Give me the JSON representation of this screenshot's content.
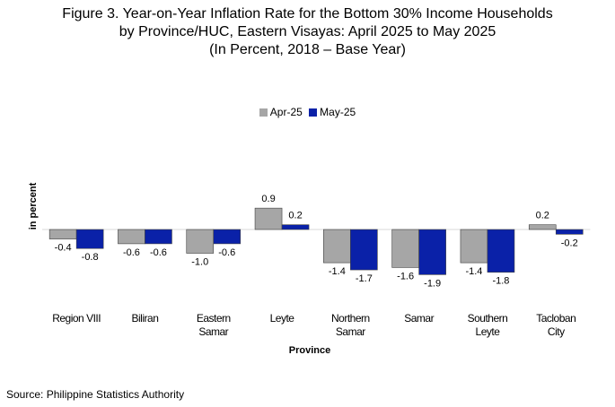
{
  "title": {
    "line1": "Figure 3. Year-on-Year Inflation Rate for the Bottom 30% Income Households",
    "line2": "by Province/HUC, Eastern Visayas: April 2025 to May 2025",
    "line3": "(In Percent, 2018 – Base Year)"
  },
  "source": "Source: Philippine Statistics Authority",
  "colors": {
    "apr": "#a6a6a6",
    "may": "#0a21a8"
  },
  "chart_data": {
    "type": "bar",
    "xlabel": "Province",
    "ylabel": "in percent",
    "categories": [
      [
        "Region VIII"
      ],
      [
        "Biliran"
      ],
      [
        "Eastern",
        "Samar"
      ],
      [
        "Leyte"
      ],
      [
        "Northern",
        "Samar"
      ],
      [
        "Samar"
      ],
      [
        "Southern",
        "Leyte"
      ],
      [
        "Tacloban",
        "City"
      ]
    ],
    "series": [
      {
        "name": "Apr-25",
        "values": [
          -0.4,
          -0.6,
          -1.0,
          0.9,
          -1.4,
          -1.6,
          -1.4,
          0.2
        ]
      },
      {
        "name": "May-25",
        "values": [
          -0.8,
          -0.6,
          -0.6,
          0.2,
          -1.7,
          -1.9,
          -1.8,
          -0.2
        ]
      }
    ],
    "legend": "top-center",
    "grid": false
  }
}
